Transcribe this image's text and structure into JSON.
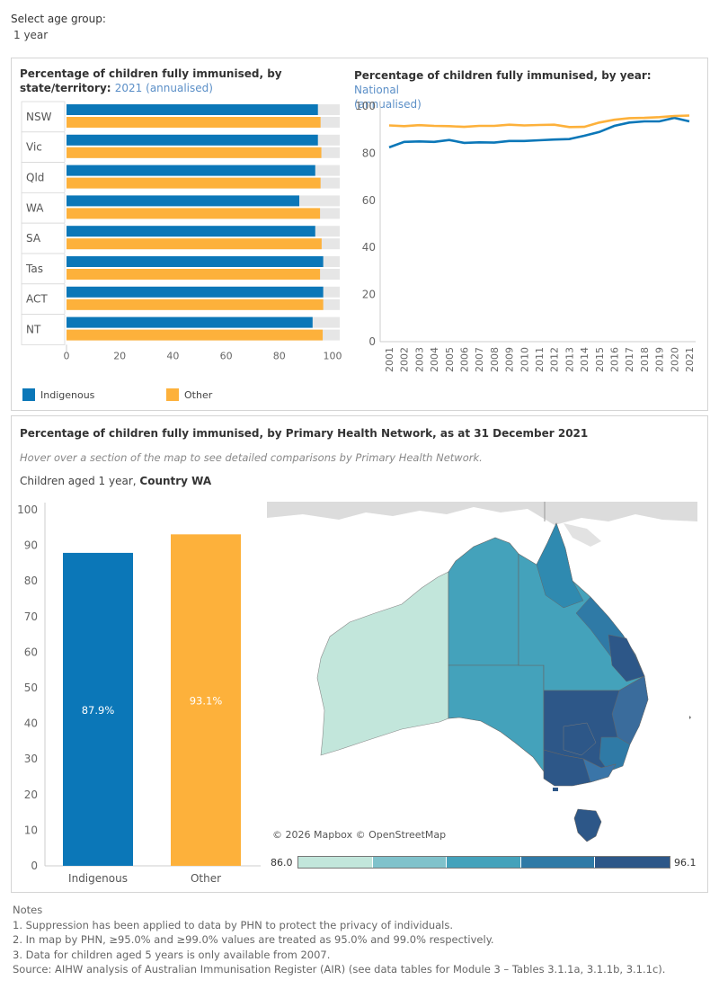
{
  "filter": {
    "label": "Select age group:",
    "value": "1 year"
  },
  "state_chart": {
    "title_prefix": "Percentage of children fully immunised, by state/territory: ",
    "title_year": "2021",
    "title_suffix": "(annualised)",
    "chart_data": {
      "type": "bar",
      "orientation": "horizontal",
      "categories": [
        "NSW",
        "Vic",
        "Qld",
        "WA",
        "SA",
        "Tas",
        "ACT",
        "NT"
      ],
      "series": [
        {
          "name": "Indigenous",
          "color": "#0b77b8",
          "values": [
            94.5,
            94.5,
            93.5,
            87.5,
            93.5,
            96.5,
            96.5,
            92.5
          ]
        },
        {
          "name": "Other",
          "color": "#fdb13b",
          "values": [
            95.5,
            95.8,
            95.5,
            95.3,
            95.9,
            95.3,
            96.5,
            96.3
          ]
        }
      ],
      "xlim": [
        0,
        100
      ],
      "xticks": [
        0,
        20,
        40,
        60,
        80,
        100
      ]
    }
  },
  "legend": [
    {
      "label": "Indigenous",
      "color": "#0b77b8"
    },
    {
      "label": "Other",
      "color": "#fdb13b"
    }
  ],
  "year_chart": {
    "title_prefix": "Percentage of children fully immunised, by year: ",
    "title_region": "National",
    "title_suffix": "(annualised)",
    "chart_data": {
      "type": "line",
      "x": [
        "2001",
        "2002",
        "2003",
        "2004",
        "2005",
        "2006",
        "2007",
        "2008",
        "2009",
        "2010",
        "2011",
        "2012",
        "2013",
        "2014",
        "2015",
        "2016",
        "2017",
        "2018",
        "2019",
        "2020",
        "2021"
      ],
      "series": [
        {
          "name": "Indigenous",
          "color": "#0b77b8",
          "values": [
            82.5,
            84.8,
            85.0,
            84.8,
            85.6,
            84.4,
            84.6,
            84.5,
            85.2,
            85.2,
            85.5,
            85.8,
            86.0,
            87.4,
            89.0,
            91.6,
            93.0,
            93.5,
            93.5,
            95.0,
            93.5
          ]
        },
        {
          "name": "Other",
          "color": "#fdb13b",
          "values": [
            91.8,
            91.5,
            91.9,
            91.6,
            91.5,
            91.2,
            91.6,
            91.6,
            92.1,
            91.8,
            92.0,
            92.1,
            91.1,
            91.2,
            93.0,
            94.2,
            94.9,
            95.0,
            95.3,
            95.8,
            96.0
          ]
        }
      ],
      "ylim": [
        0,
        100
      ],
      "yticks": [
        0,
        20,
        40,
        60,
        80,
        100
      ]
    }
  },
  "phn": {
    "title": "Percentage of children fully immunised, by Primary Health Network, as at 31 December 2021",
    "hint": "Hover over a section of the map to see detailed comparisons by Primary Health Network.",
    "subtitle_prefix": "Children aged 1 year, ",
    "subtitle_region": "Country WA",
    "chart_data": {
      "type": "bar",
      "categories": [
        "Indigenous",
        "Other"
      ],
      "values": [
        87.9,
        93.1
      ],
      "labels": [
        "87.9%",
        "93.1%"
      ],
      "colors": [
        "#0b77b8",
        "#fdb13b"
      ],
      "ylim": [
        0,
        100
      ],
      "yticks": [
        0,
        10,
        20,
        30,
        40,
        50,
        60,
        70,
        80,
        90,
        100
      ]
    },
    "map_attribution": "© 2026 Mapbox © OpenStreetMap",
    "scale": {
      "min_label": "86.0",
      "max_label": "96.1",
      "colors": [
        "#c2e6db",
        "#80c2cb",
        "#44a2bb",
        "#2f7aa6",
        "#2d5788"
      ]
    }
  },
  "notes": {
    "heading": "Notes",
    "items": [
      "1. Suppression has been applied to data by PHN to protect the privacy of individuals.",
      "2. In map by PHN, ≥95.0% and ≥99.0% values are treated as 95.0% and 99.0% respectively.",
      "3. Data for children aged 5 years is only available from 2007."
    ],
    "source": "Source: AIHW analysis of Australian Immunisation Register (AIR) (see data tables for Module 3 – Tables 3.1.1a, 3.1.1b, 3.1.1c)."
  }
}
